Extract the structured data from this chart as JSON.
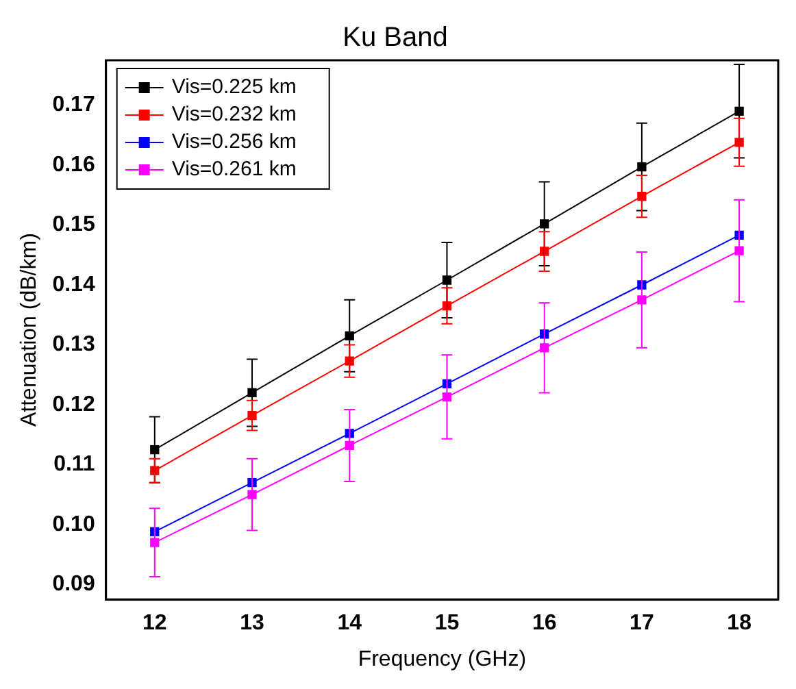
{
  "chart_data": {
    "type": "line",
    "title": "Ku Band",
    "xlabel": "Frequency (GHz)",
    "ylabel": "Attenuation (dB/km)",
    "x": [
      12,
      13,
      14,
      15,
      16,
      17,
      18
    ],
    "series": [
      {
        "name": "Vis=0.225 km",
        "color": "#000000",
        "values": [
          0.1125,
          0.122,
          0.1315,
          0.1408,
          0.1502,
          0.1597,
          0.169
        ],
        "errors": [
          0.0055,
          0.0056,
          0.006,
          0.0063,
          0.007,
          0.0073,
          0.0078
        ]
      },
      {
        "name": "Vis=0.232 km",
        "color": "#ff0000",
        "values": [
          0.109,
          0.1182,
          0.1273,
          0.1365,
          0.1456,
          0.1548,
          0.1638
        ],
        "errors": [
          0.002,
          0.0025,
          0.0027,
          0.003,
          0.0033,
          0.0035,
          0.004
        ]
      },
      {
        "name": "Vis=0.256 km",
        "color": "#0000ff",
        "values": [
          0.0988,
          0.107,
          0.1152,
          0.1235,
          0.1318,
          0.14,
          0.1483
        ]
      },
      {
        "name": "Vis=0.261 km",
        "color": "#ff00ff",
        "values": [
          0.097,
          0.105,
          0.1132,
          0.1213,
          0.1295,
          0.1375,
          0.1457
        ],
        "errors": [
          0.0057,
          0.006,
          0.006,
          0.007,
          0.0075,
          0.008,
          0.0085
        ]
      }
    ],
    "xlim": [
      11.5,
      18.4
    ],
    "xticks": [
      12,
      13,
      14,
      15,
      16,
      17,
      18
    ],
    "ylim": [
      0.0875,
      0.1775
    ],
    "yticks": [
      0.09,
      {
        "value": 0.1,
        "label": "0.10"
      },
      0.11,
      0.12,
      0.13,
      0.14,
      0.15,
      0.16,
      0.17
    ],
    "grid": false,
    "legend": "top left",
    "marker": "square",
    "line_style": "solid"
  }
}
